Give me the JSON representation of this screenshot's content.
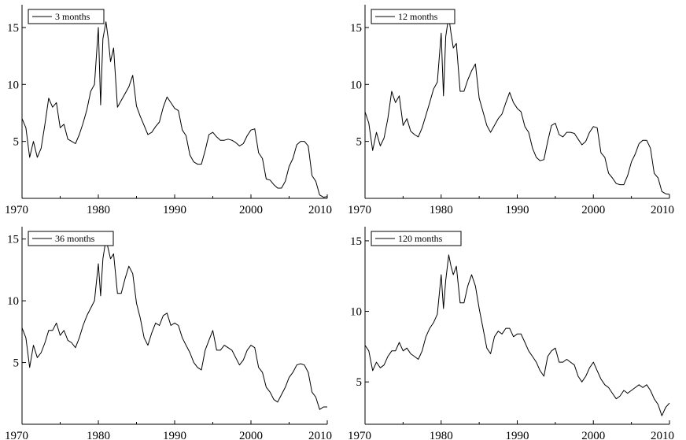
{
  "chart_data": [
    {
      "type": "line",
      "title": "",
      "xlabel": "",
      "ylabel": "",
      "xlim": [
        1970,
        2010
      ],
      "ylim": [
        0,
        17
      ],
      "xticks": [
        "1970",
        "1980",
        "1990",
        "2000",
        "2010"
      ],
      "yticks": [
        "5",
        "10",
        "15"
      ],
      "legend": "top-left",
      "grid": false,
      "series": [
        {
          "name": "3 months",
          "x": [
            1970.0,
            1970.5,
            1971.0,
            1971.5,
            1972.0,
            1972.5,
            1973.0,
            1973.5,
            1974.0,
            1974.5,
            1975.0,
            1975.5,
            1976.0,
            1976.5,
            1977.0,
            1977.5,
            1978.0,
            1978.5,
            1979.0,
            1979.5,
            1980.0,
            1980.3,
            1980.6,
            1981.0,
            1981.3,
            1981.6,
            1982.0,
            1982.5,
            1983.0,
            1983.5,
            1984.0,
            1984.5,
            1985.0,
            1985.5,
            1986.0,
            1986.5,
            1987.0,
            1987.5,
            1988.0,
            1988.5,
            1989.0,
            1989.5,
            1990.0,
            1990.5,
            1991.0,
            1991.5,
            1992.0,
            1992.5,
            1993.0,
            1993.5,
            1994.0,
            1994.5,
            1995.0,
            1995.5,
            1996.0,
            1996.5,
            1997.0,
            1997.5,
            1998.0,
            1998.5,
            1999.0,
            1999.5,
            2000.0,
            2000.5,
            2001.0,
            2001.5,
            2002.0,
            2002.5,
            2003.0,
            2003.5,
            2004.0,
            2004.5,
            2005.0,
            2005.5,
            2006.0,
            2006.5,
            2007.0,
            2007.5,
            2008.0,
            2008.5,
            2009.0,
            2009.5,
            2010.0
          ],
          "y": [
            7.0,
            6.2,
            3.6,
            5.0,
            3.6,
            4.4,
            6.5,
            8.8,
            8.0,
            8.4,
            6.2,
            6.5,
            5.2,
            5.0,
            4.8,
            5.6,
            6.6,
            7.8,
            9.4,
            10.0,
            15.0,
            8.2,
            14.0,
            15.5,
            14.0,
            12.0,
            13.2,
            8.0,
            8.6,
            9.2,
            9.8,
            10.8,
            8.1,
            7.2,
            6.4,
            5.6,
            5.8,
            6.3,
            6.7,
            8.0,
            8.9,
            8.4,
            7.9,
            7.7,
            6.0,
            5.5,
            3.8,
            3.2,
            3.0,
            3.0,
            4.2,
            5.6,
            5.8,
            5.4,
            5.1,
            5.1,
            5.2,
            5.1,
            4.9,
            4.6,
            4.8,
            5.5,
            6.0,
            6.1,
            4.0,
            3.5,
            1.7,
            1.6,
            1.2,
            0.9,
            0.9,
            1.5,
            2.8,
            3.5,
            4.7,
            5.0,
            5.0,
            4.6,
            2.0,
            1.5,
            0.3,
            0.1,
            0.15
          ]
        }
      ]
    },
    {
      "type": "line",
      "title": "",
      "xlabel": "",
      "ylabel": "",
      "xlim": [
        1970,
        2010
      ],
      "ylim": [
        0,
        17
      ],
      "xticks": [
        "1970",
        "1980",
        "1990",
        "2000",
        "2010"
      ],
      "yticks": [
        "5",
        "10",
        "15"
      ],
      "legend": "top-left",
      "grid": false,
      "series": [
        {
          "name": "12 months",
          "x": [
            1970.0,
            1970.5,
            1971.0,
            1971.5,
            1972.0,
            1972.5,
            1973.0,
            1973.5,
            1974.0,
            1974.5,
            1975.0,
            1975.5,
            1976.0,
            1976.5,
            1977.0,
            1977.5,
            1978.0,
            1978.5,
            1979.0,
            1979.5,
            1980.0,
            1980.3,
            1980.6,
            1981.0,
            1981.3,
            1981.6,
            1982.0,
            1982.5,
            1983.0,
            1983.5,
            1984.0,
            1984.5,
            1985.0,
            1985.5,
            1986.0,
            1986.5,
            1987.0,
            1987.5,
            1988.0,
            1988.5,
            1989.0,
            1989.5,
            1990.0,
            1990.5,
            1991.0,
            1991.5,
            1992.0,
            1992.5,
            1993.0,
            1993.5,
            1994.0,
            1994.5,
            1995.0,
            1995.5,
            1996.0,
            1996.5,
            1997.0,
            1997.5,
            1998.0,
            1998.5,
            1999.0,
            1999.5,
            2000.0,
            2000.5,
            2001.0,
            2001.5,
            2002.0,
            2002.5,
            2003.0,
            2003.5,
            2004.0,
            2004.5,
            2005.0,
            2005.5,
            2006.0,
            2006.5,
            2007.0,
            2007.5,
            2008.0,
            2008.5,
            2009.0,
            2009.5,
            2010.0
          ],
          "y": [
            7.6,
            6.6,
            4.2,
            5.8,
            4.6,
            5.3,
            7.0,
            9.4,
            8.4,
            9.0,
            6.4,
            7.0,
            5.9,
            5.6,
            5.4,
            6.2,
            7.3,
            8.4,
            9.6,
            10.2,
            14.5,
            9.0,
            14.2,
            16.0,
            14.5,
            13.2,
            13.6,
            9.4,
            9.4,
            10.4,
            11.2,
            11.8,
            8.8,
            7.6,
            6.4,
            5.8,
            6.4,
            7.0,
            7.4,
            8.4,
            9.3,
            8.4,
            7.9,
            7.6,
            6.3,
            5.8,
            4.4,
            3.6,
            3.3,
            3.4,
            5.0,
            6.4,
            6.6,
            5.6,
            5.4,
            5.8,
            5.8,
            5.7,
            5.2,
            4.7,
            5.0,
            5.8,
            6.3,
            6.2,
            4.0,
            3.6,
            2.2,
            1.8,
            1.3,
            1.2,
            1.2,
            2.0,
            3.2,
            3.9,
            4.8,
            5.1,
            5.1,
            4.4,
            2.2,
            1.8,
            0.6,
            0.4,
            0.35
          ]
        }
      ]
    },
    {
      "type": "line",
      "title": "",
      "xlabel": "",
      "ylabel": "",
      "xlim": [
        1970,
        2010
      ],
      "ylim": [
        0,
        16
      ],
      "xticks": [
        "1970",
        "1980",
        "1990",
        "2000",
        "2010"
      ],
      "yticks": [
        "5",
        "10",
        "15"
      ],
      "legend": "top-left",
      "grid": false,
      "series": [
        {
          "name": "36 months",
          "x": [
            1970.0,
            1970.5,
            1971.0,
            1971.5,
            1972.0,
            1972.5,
            1973.0,
            1973.5,
            1974.0,
            1974.5,
            1975.0,
            1975.5,
            1976.0,
            1976.5,
            1977.0,
            1977.5,
            1978.0,
            1978.5,
            1979.0,
            1979.5,
            1980.0,
            1980.3,
            1980.6,
            1981.0,
            1981.3,
            1981.6,
            1982.0,
            1982.5,
            1983.0,
            1983.5,
            1984.0,
            1984.5,
            1985.0,
            1985.5,
            1986.0,
            1986.5,
            1987.0,
            1987.5,
            1988.0,
            1988.5,
            1989.0,
            1989.5,
            1990.0,
            1990.5,
            1991.0,
            1991.5,
            1992.0,
            1992.5,
            1993.0,
            1993.5,
            1994.0,
            1994.5,
            1995.0,
            1995.5,
            1996.0,
            1996.5,
            1997.0,
            1997.5,
            1998.0,
            1998.5,
            1999.0,
            1999.5,
            2000.0,
            2000.5,
            2001.0,
            2001.5,
            2002.0,
            2002.5,
            2003.0,
            2003.5,
            2004.0,
            2004.5,
            2005.0,
            2005.5,
            2006.0,
            2006.5,
            2007.0,
            2007.5,
            2008.0,
            2008.5,
            2009.0,
            2009.5,
            2010.0
          ],
          "y": [
            7.8,
            7.0,
            4.6,
            6.4,
            5.4,
            5.8,
            6.6,
            7.6,
            7.6,
            8.2,
            7.2,
            7.6,
            6.8,
            6.6,
            6.2,
            7.0,
            8.0,
            8.8,
            9.4,
            10.0,
            13.0,
            10.4,
            13.4,
            15.0,
            14.2,
            13.4,
            13.8,
            10.6,
            10.6,
            11.8,
            12.8,
            12.2,
            9.8,
            8.6,
            7.0,
            6.4,
            7.4,
            8.2,
            8.0,
            8.8,
            9.0,
            8.0,
            8.2,
            8.0,
            7.0,
            6.4,
            5.8,
            5.0,
            4.6,
            4.4,
            6.0,
            6.8,
            7.6,
            6.0,
            6.0,
            6.4,
            6.2,
            6.0,
            5.4,
            4.8,
            5.2,
            6.0,
            6.4,
            6.2,
            4.6,
            4.2,
            3.0,
            2.6,
            2.0,
            1.8,
            2.4,
            3.0,
            3.8,
            4.2,
            4.8,
            4.9,
            4.8,
            4.2,
            2.6,
            2.2,
            1.2,
            1.4,
            1.4
          ]
        }
      ]
    },
    {
      "type": "line",
      "title": "",
      "xlabel": "",
      "ylabel": "",
      "xlim": [
        1970,
        2010
      ],
      "ylim": [
        2,
        16
      ],
      "xticks": [
        "1970",
        "1980",
        "1990",
        "2000",
        "2010"
      ],
      "yticks": [
        "5",
        "10",
        "15"
      ],
      "legend": "top-left",
      "grid": false,
      "series": [
        {
          "name": "120 months",
          "x": [
            1970.0,
            1970.5,
            1971.0,
            1971.5,
            1972.0,
            1972.5,
            1973.0,
            1973.5,
            1974.0,
            1974.5,
            1975.0,
            1975.5,
            1976.0,
            1976.5,
            1977.0,
            1977.5,
            1978.0,
            1978.5,
            1979.0,
            1979.5,
            1980.0,
            1980.3,
            1980.6,
            1981.0,
            1981.3,
            1981.6,
            1982.0,
            1982.5,
            1983.0,
            1983.5,
            1984.0,
            1984.5,
            1985.0,
            1985.5,
            1986.0,
            1986.5,
            1987.0,
            1987.5,
            1988.0,
            1988.5,
            1989.0,
            1989.5,
            1990.0,
            1990.5,
            1991.0,
            1991.5,
            1992.0,
            1992.5,
            1993.0,
            1993.5,
            1994.0,
            1994.5,
            1995.0,
            1995.5,
            1996.0,
            1996.5,
            1997.0,
            1997.5,
            1998.0,
            1998.5,
            1999.0,
            1999.5,
            2000.0,
            2000.5,
            2001.0,
            2001.5,
            2002.0,
            2002.5,
            2003.0,
            2003.5,
            2004.0,
            2004.5,
            2005.0,
            2005.5,
            2006.0,
            2006.5,
            2007.0,
            2007.5,
            2008.0,
            2008.5,
            2009.0,
            2009.5,
            2010.0
          ],
          "y": [
            7.6,
            7.2,
            5.8,
            6.4,
            6.0,
            6.2,
            6.8,
            7.2,
            7.2,
            7.8,
            7.2,
            7.4,
            7.0,
            6.8,
            6.6,
            7.2,
            8.2,
            8.8,
            9.2,
            9.8,
            12.6,
            10.2,
            12.2,
            14.0,
            13.2,
            12.6,
            13.2,
            10.6,
            10.6,
            11.8,
            12.6,
            11.8,
            10.2,
            8.8,
            7.4,
            7.0,
            8.2,
            8.6,
            8.4,
            8.8,
            8.8,
            8.2,
            8.4,
            8.4,
            7.8,
            7.2,
            6.8,
            6.4,
            5.8,
            5.4,
            6.8,
            7.2,
            7.4,
            6.4,
            6.4,
            6.6,
            6.4,
            6.2,
            5.4,
            5.0,
            5.4,
            6.0,
            6.4,
            5.8,
            5.2,
            4.8,
            4.6,
            4.2,
            3.8,
            4.0,
            4.4,
            4.2,
            4.4,
            4.6,
            4.8,
            4.6,
            4.8,
            4.4,
            3.8,
            3.4,
            2.6,
            3.2,
            3.5
          ]
        }
      ]
    }
  ]
}
